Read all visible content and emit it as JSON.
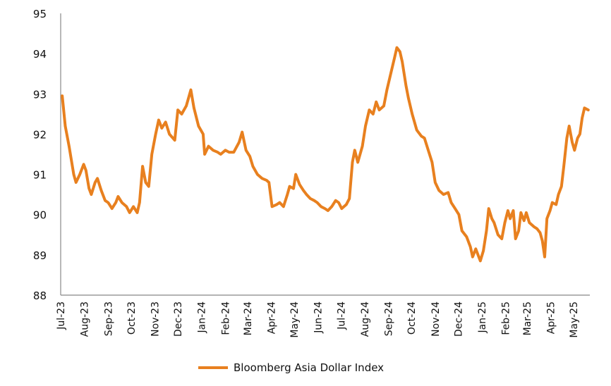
{
  "chart_data": {
    "type": "line",
    "title": "",
    "xlabel": "",
    "ylabel": "",
    "ylim": [
      88,
      95
    ],
    "y_ticks": [
      "88",
      "89",
      "90",
      "91",
      "92",
      "93",
      "94",
      "95"
    ],
    "x_ticks": [
      "Jul-23",
      "Aug-23",
      "Sep-23",
      "Oct-23",
      "Nov-23",
      "Dec-23",
      "Jan-24",
      "Feb-24",
      "Mar-24",
      "Apr-24",
      "May-24",
      "Jun-24",
      "Jul-24",
      "Aug-24",
      "Sep-24",
      "Oct-24",
      "Nov-24",
      "Dec-24",
      "Jan-25",
      "Feb-25",
      "Mar-25",
      "Apr-25",
      "May-25"
    ],
    "grid": false,
    "legend_placement": "bottom-center",
    "color": "#E8801F",
    "series": [
      {
        "name": "Bloomberg Asia Dollar Index",
        "points": [
          [
            "2023-07-03",
            92.95
          ],
          [
            "2023-07-07",
            92.2
          ],
          [
            "2023-07-12",
            91.7
          ],
          [
            "2023-07-18",
            91.0
          ],
          [
            "2023-07-21",
            90.8
          ],
          [
            "2023-07-26",
            91.0
          ],
          [
            "2023-07-31",
            91.25
          ],
          [
            "2023-08-03",
            91.1
          ],
          [
            "2023-08-07",
            90.65
          ],
          [
            "2023-08-10",
            90.5
          ],
          [
            "2023-08-15",
            90.8
          ],
          [
            "2023-08-18",
            90.9
          ],
          [
            "2023-08-23",
            90.6
          ],
          [
            "2023-08-28",
            90.35
          ],
          [
            "2023-09-01",
            90.3
          ],
          [
            "2023-09-06",
            90.15
          ],
          [
            "2023-09-11",
            90.3
          ],
          [
            "2023-09-14",
            90.45
          ],
          [
            "2023-09-19",
            90.3
          ],
          [
            "2023-09-25",
            90.2
          ],
          [
            "2023-09-29",
            90.05
          ],
          [
            "2023-10-04",
            90.2
          ],
          [
            "2023-10-09",
            90.05
          ],
          [
            "2023-10-12",
            90.3
          ],
          [
            "2023-10-16",
            91.2
          ],
          [
            "2023-10-20",
            90.8
          ],
          [
            "2023-10-24",
            90.7
          ],
          [
            "2023-10-28",
            91.5
          ],
          [
            "2023-11-02",
            92.0
          ],
          [
            "2023-11-06",
            92.35
          ],
          [
            "2023-11-10",
            92.15
          ],
          [
            "2023-11-15",
            92.3
          ],
          [
            "2023-11-20",
            92.0
          ],
          [
            "2023-11-27",
            91.85
          ],
          [
            "2023-12-01",
            92.6
          ],
          [
            "2023-12-06",
            92.5
          ],
          [
            "2023-12-12",
            92.7
          ],
          [
            "2023-12-18",
            93.1
          ],
          [
            "2023-12-22",
            92.65
          ],
          [
            "2023-12-28",
            92.2
          ],
          [
            "2024-01-03",
            92.0
          ],
          [
            "2024-01-05",
            91.5
          ],
          [
            "2024-01-10",
            91.7
          ],
          [
            "2024-01-16",
            91.6
          ],
          [
            "2024-01-22",
            91.55
          ],
          [
            "2024-01-26",
            91.5
          ],
          [
            "2024-02-01",
            91.6
          ],
          [
            "2024-02-06",
            91.55
          ],
          [
            "2024-02-12",
            91.55
          ],
          [
            "2024-02-19",
            91.8
          ],
          [
            "2024-02-23",
            92.05
          ],
          [
            "2024-02-28",
            91.6
          ],
          [
            "2024-03-04",
            91.45
          ],
          [
            "2024-03-08",
            91.2
          ],
          [
            "2024-03-14",
            91.0
          ],
          [
            "2024-03-20",
            90.9
          ],
          [
            "2024-03-26",
            90.85
          ],
          [
            "2024-03-29",
            90.8
          ],
          [
            "2024-04-02",
            90.2
          ],
          [
            "2024-04-08",
            90.25
          ],
          [
            "2024-04-12",
            90.3
          ],
          [
            "2024-04-17",
            90.2
          ],
          [
            "2024-04-22",
            90.5
          ],
          [
            "2024-04-25",
            90.7
          ],
          [
            "2024-04-30",
            90.65
          ],
          [
            "2024-05-03",
            91.0
          ],
          [
            "2024-05-08",
            90.75
          ],
          [
            "2024-05-13",
            90.6
          ],
          [
            "2024-05-17",
            90.5
          ],
          [
            "2024-05-22",
            90.4
          ],
          [
            "2024-05-27",
            90.35
          ],
          [
            "2024-05-31",
            90.3
          ],
          [
            "2024-06-05",
            90.2
          ],
          [
            "2024-06-10",
            90.15
          ],
          [
            "2024-06-14",
            90.1
          ],
          [
            "2024-06-19",
            90.2
          ],
          [
            "2024-06-24",
            90.35
          ],
          [
            "2024-06-28",
            90.3
          ],
          [
            "2024-07-02",
            90.15
          ],
          [
            "2024-07-08",
            90.25
          ],
          [
            "2024-07-12",
            90.4
          ],
          [
            "2024-07-16",
            91.3
          ],
          [
            "2024-07-19",
            91.6
          ],
          [
            "2024-07-23",
            91.3
          ],
          [
            "2024-07-29",
            91.7
          ],
          [
            "2024-08-02",
            92.2
          ],
          [
            "2024-08-07",
            92.6
          ],
          [
            "2024-08-12",
            92.5
          ],
          [
            "2024-08-16",
            92.8
          ],
          [
            "2024-08-20",
            92.6
          ],
          [
            "2024-08-26",
            92.7
          ],
          [
            "2024-08-30",
            93.1
          ],
          [
            "2024-09-04",
            93.5
          ],
          [
            "2024-09-09",
            93.9
          ],
          [
            "2024-09-12",
            94.15
          ],
          [
            "2024-09-16",
            94.05
          ],
          [
            "2024-09-19",
            93.8
          ],
          [
            "2024-09-24",
            93.2
          ],
          [
            "2024-09-27",
            92.9
          ],
          [
            "2024-10-02",
            92.5
          ],
          [
            "2024-10-08",
            92.1
          ],
          [
            "2024-10-14",
            91.95
          ],
          [
            "2024-10-18",
            91.9
          ],
          [
            "2024-10-23",
            91.6
          ],
          [
            "2024-10-28",
            91.3
          ],
          [
            "2024-11-01",
            90.8
          ],
          [
            "2024-11-06",
            90.6
          ],
          [
            "2024-11-12",
            90.5
          ],
          [
            "2024-11-18",
            90.55
          ],
          [
            "2024-11-22",
            90.3
          ],
          [
            "2024-11-27",
            90.15
          ],
          [
            "2024-12-02",
            90.0
          ],
          [
            "2024-12-06",
            89.6
          ],
          [
            "2024-12-12",
            89.45
          ],
          [
            "2024-12-17",
            89.2
          ],
          [
            "2024-12-20",
            88.95
          ],
          [
            "2024-12-24",
            89.15
          ],
          [
            "2024-12-30",
            88.85
          ],
          [
            "2025-01-03",
            89.1
          ],
          [
            "2025-01-07",
            89.6
          ],
          [
            "2025-01-10",
            90.15
          ],
          [
            "2025-01-14",
            89.9
          ],
          [
            "2025-01-17",
            89.8
          ],
          [
            "2025-01-22",
            89.5
          ],
          [
            "2025-01-27",
            89.4
          ],
          [
            "2025-01-31",
            89.8
          ],
          [
            "2025-02-04",
            90.1
          ],
          [
            "2025-02-07",
            89.9
          ],
          [
            "2025-02-11",
            90.1
          ],
          [
            "2025-02-14",
            89.4
          ],
          [
            "2025-02-18",
            89.6
          ],
          [
            "2025-02-21",
            90.05
          ],
          [
            "2025-02-25",
            89.85
          ],
          [
            "2025-02-28",
            90.05
          ],
          [
            "2025-03-04",
            89.8
          ],
          [
            "2025-03-10",
            89.7
          ],
          [
            "2025-03-14",
            89.65
          ],
          [
            "2025-03-18",
            89.55
          ],
          [
            "2025-03-21",
            89.35
          ],
          [
            "2025-03-24",
            88.95
          ],
          [
            "2025-03-27",
            89.9
          ],
          [
            "2025-03-31",
            90.1
          ],
          [
            "2025-04-03",
            90.3
          ],
          [
            "2025-04-08",
            90.25
          ],
          [
            "2025-04-11",
            90.5
          ],
          [
            "2025-04-15",
            90.7
          ],
          [
            "2025-04-18",
            91.2
          ],
          [
            "2025-04-22",
            91.9
          ],
          [
            "2025-04-25",
            92.2
          ],
          [
            "2025-04-29",
            91.8
          ],
          [
            "2025-05-02",
            91.6
          ],
          [
            "2025-05-06",
            91.9
          ],
          [
            "2025-05-09",
            92.0
          ],
          [
            "2025-05-12",
            92.4
          ],
          [
            "2025-05-15",
            92.65
          ],
          [
            "2025-05-20",
            92.6
          ]
        ]
      }
    ]
  }
}
